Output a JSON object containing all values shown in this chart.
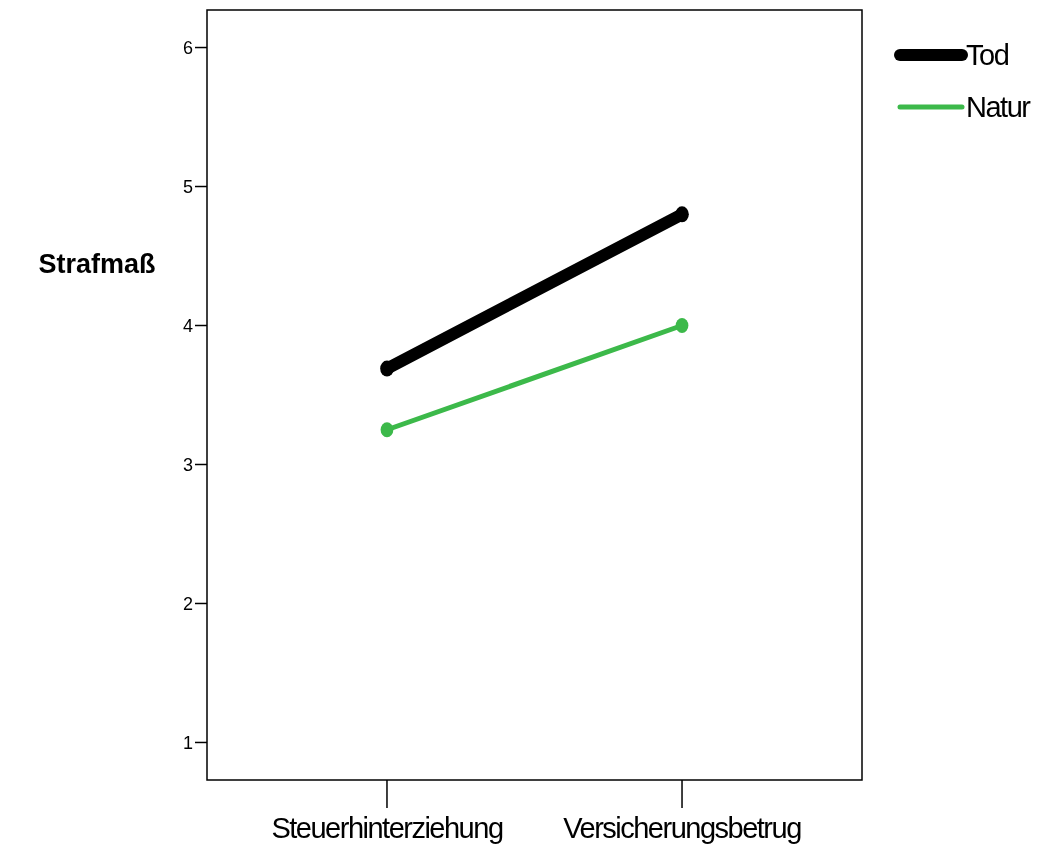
{
  "chart_data": {
    "type": "line",
    "ylabel": "Strafmaß",
    "categories": [
      "Steuerhinterziehung",
      "Versicherungsbetrug"
    ],
    "series": [
      {
        "name": "Tod",
        "color": "#000000",
        "values": [
          3.69,
          4.8
        ]
      },
      {
        "name": "Natur",
        "color": "#3cb94a",
        "values": [
          3.25,
          4.0
        ]
      }
    ],
    "ylim": [
      0.73,
      6.27
    ],
    "yticks": [
      1,
      2,
      3,
      4,
      5,
      6
    ],
    "marker": "circle",
    "legend": "top right",
    "grid": false
  }
}
